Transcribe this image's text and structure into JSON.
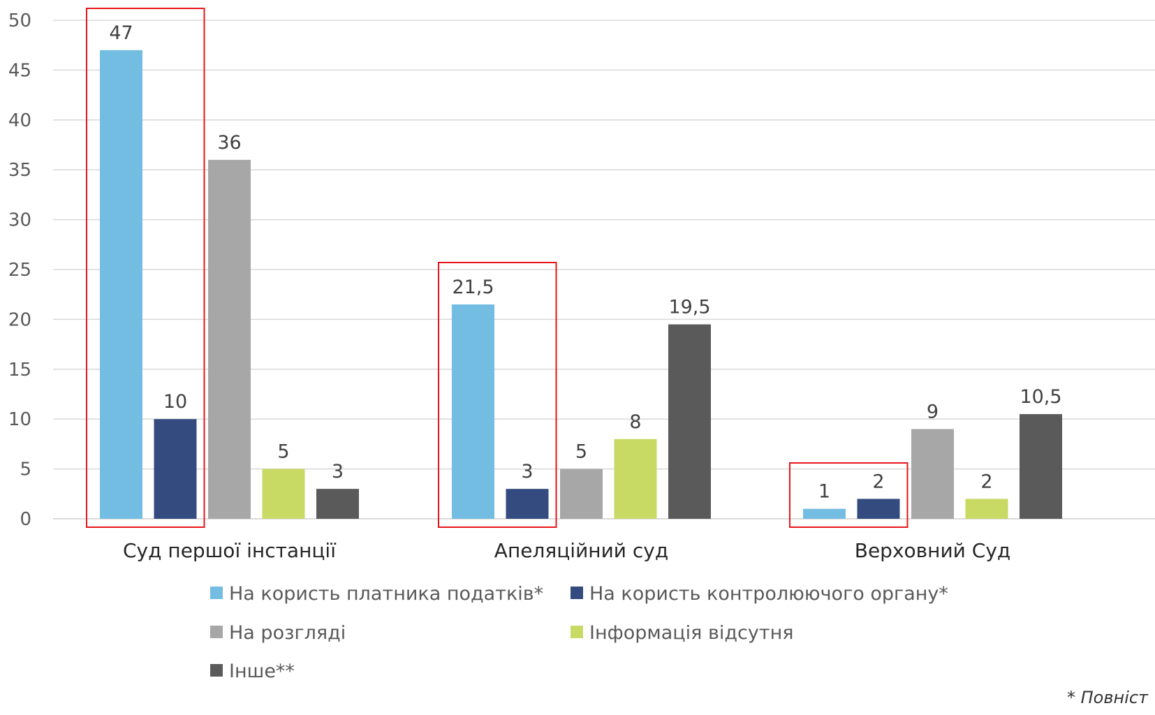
{
  "chart_data": {
    "type": "bar",
    "categories": [
      "Суд першої інстанції",
      "Апеляційний суд",
      "Верховний Суд"
    ],
    "series": [
      {
        "name": "На користь платника податків*",
        "color": "#74bde2",
        "values": [
          47,
          21.5,
          1
        ],
        "labels": [
          "47",
          "21,5",
          "1"
        ]
      },
      {
        "name": "На користь контролюючого органу*",
        "color": "#344b7f",
        "values": [
          10,
          3,
          2
        ],
        "labels": [
          "10",
          "3",
          "2"
        ]
      },
      {
        "name": "На розгляді",
        "color": "#a7a7a7",
        "values": [
          36,
          5,
          9
        ],
        "labels": [
          "36",
          "5",
          "9"
        ]
      },
      {
        "name": "Інформація відсутня",
        "color": "#c9da64",
        "values": [
          5,
          8,
          2
        ],
        "labels": [
          "5",
          "8",
          "2"
        ]
      },
      {
        "name": "Інше**",
        "color": "#5a5a5a",
        "values": [
          3,
          19.5,
          10.5
        ],
        "labels": [
          "3",
          "19,5",
          "10,5"
        ]
      }
    ],
    "y_ticks": [
      "0",
      "5",
      "10",
      "15",
      "20",
      "25",
      "30",
      "35",
      "40",
      "45",
      "50"
    ],
    "ylim": [
      0,
      50
    ],
    "grid": true,
    "legend_position": "bottom",
    "highlight_color": "#e8141b",
    "highlights": [
      {
        "category": "Суд першої інстанції",
        "series": [
          "На користь платника податків*",
          "На користь контролюючого органу*"
        ]
      },
      {
        "category": "Апеляційний суд",
        "series": [
          "На користь платника податків*",
          "На користь контролюючого органу*"
        ]
      },
      {
        "category": "Верховний Суд",
        "series": [
          "На користь платника податків*",
          "На користь контролюючого органу*"
        ]
      }
    ]
  },
  "footnote": "*  Повніст"
}
